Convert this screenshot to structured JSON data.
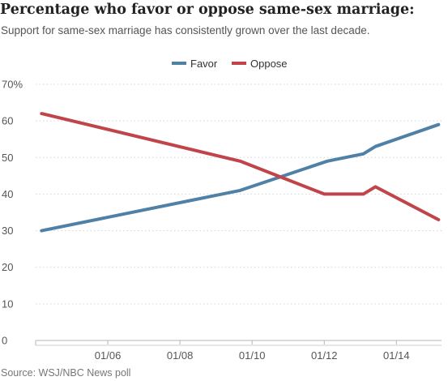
{
  "title": "Percentage who favor or oppose same-sex marriage:",
  "subtitle": "Support for same-sex marriage has consistently grown over the last decade.",
  "source": "Source: WSJ/NBC News poll",
  "chart_data": {
    "type": "line",
    "title": "Percentage who favor or oppose same-sex marriage:",
    "subtitle": "Support for same-sex marriage has consistently grown over the last decade.",
    "xlabel": "",
    "ylabel": "",
    "xlim": [
      "2004-01",
      "2015-04"
    ],
    "ylim": [
      0,
      70
    ],
    "yticks": [
      0,
      10,
      20,
      30,
      40,
      50,
      60,
      70
    ],
    "ytick_labels": [
      "0",
      "10",
      "20",
      "30",
      "40",
      "50",
      "60",
      "70%"
    ],
    "xticks": [
      "2006-01",
      "2008-01",
      "2010-01",
      "2012-01",
      "2014-01"
    ],
    "xtick_labels": [
      "01/06",
      "01/08",
      "01/10",
      "01/12",
      "01/14"
    ],
    "grid": "horizontal dotted",
    "legend": "top-center",
    "series": [
      {
        "name": "Favor",
        "color": "#4f81a6",
        "points": [
          {
            "x": "2004-03",
            "y": 30
          },
          {
            "x": "2009-09",
            "y": 41
          },
          {
            "x": "2012-02",
            "y": 49
          },
          {
            "x": "2013-02",
            "y": 51
          },
          {
            "x": "2013-06",
            "y": 53
          },
          {
            "x": "2015-03",
            "y": 59
          }
        ]
      },
      {
        "name": "Oppose",
        "color": "#c04449",
        "points": [
          {
            "x": "2004-03",
            "y": 62
          },
          {
            "x": "2009-09",
            "y": 49
          },
          {
            "x": "2012-01",
            "y": 40
          },
          {
            "x": "2013-02",
            "y": 40
          },
          {
            "x": "2013-06",
            "y": 42
          },
          {
            "x": "2015-03",
            "y": 33
          }
        ]
      }
    ]
  }
}
